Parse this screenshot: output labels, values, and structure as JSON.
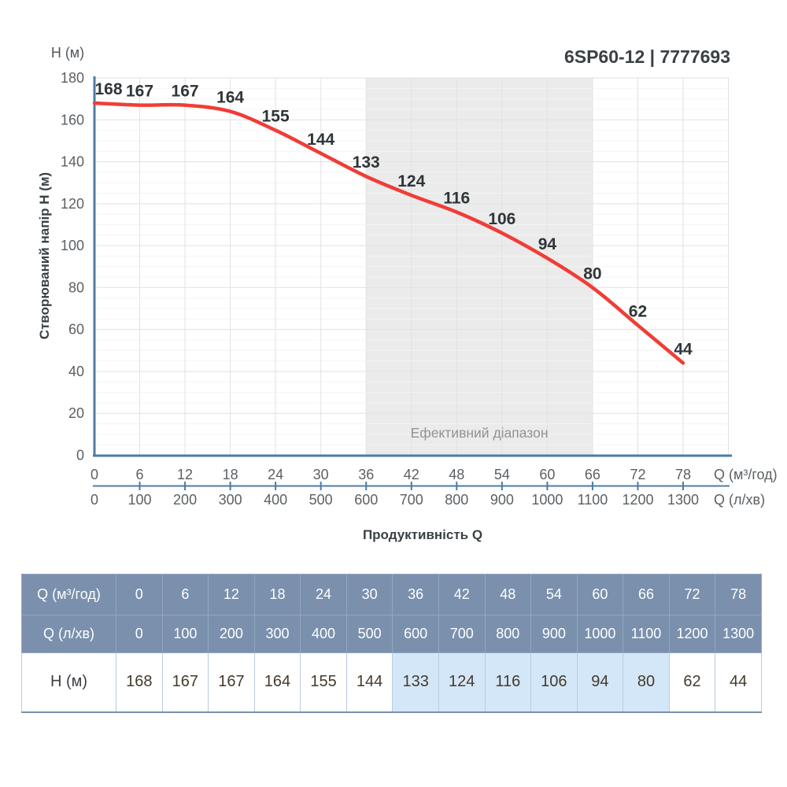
{
  "header": {
    "title": "6SP60-12 | 7777693"
  },
  "chart_data": {
    "type": "line",
    "title": "6SP60-12 | 7777693",
    "xlabel": "Продуктивність Q",
    "ylabel": "Створюваний напір H (м)",
    "y_axis_unit": "H (м)",
    "x_axis_unit_primary": "Q (м³/год)",
    "x_axis_unit_secondary": "Q (л/хв)",
    "x": [
      0,
      6,
      12,
      18,
      24,
      30,
      36,
      42,
      48,
      54,
      60,
      66,
      72,
      78
    ],
    "x_secondary": [
      0,
      100,
      200,
      300,
      400,
      500,
      600,
      700,
      800,
      900,
      1000,
      1100,
      1200,
      1300
    ],
    "y": [
      168,
      167,
      167,
      164,
      155,
      144,
      133,
      124,
      116,
      106,
      94,
      80,
      62,
      44
    ],
    "ylim": [
      0,
      180
    ],
    "xlim": [
      0,
      84
    ],
    "y_major_step": 20,
    "y_minor_step": 5,
    "x_major_step": 6,
    "grid": true,
    "legend_position": "none",
    "effective_range": {
      "from": 36,
      "to": 66,
      "label": "Ефективний діапазон"
    }
  },
  "table": {
    "rows": [
      {
        "kind": "hdr",
        "label": "Q (м³/год)",
        "values": [
          "0",
          "6",
          "12",
          "18",
          "24",
          "30",
          "36",
          "42",
          "48",
          "54",
          "60",
          "66",
          "72",
          "78"
        ]
      },
      {
        "kind": "hdr2",
        "label": "Q (л/хв)",
        "values": [
          "0",
          "100",
          "200",
          "300",
          "400",
          "500",
          "600",
          "700",
          "800",
          "900",
          "1000",
          "1100",
          "1200",
          "1300"
        ]
      },
      {
        "kind": "val",
        "label": "H (м)",
        "values": [
          "168",
          "167",
          "167",
          "164",
          "155",
          "144",
          "133",
          "124",
          "116",
          "106",
          "94",
          "80",
          "62",
          "44"
        ],
        "highlight_columns": [
          6,
          7,
          8,
          9,
          10,
          11
        ]
      }
    ]
  },
  "colors": {
    "curve_red": "#f03d36",
    "axis_blue": "#4d7ca3",
    "table_header_bg": "#7a90ac",
    "highlight_bg": "#d4e7f8",
    "effective_band_bg": "#ebebeb",
    "grid_major": "#e2e2e2",
    "grid_minor": "#f4f4f4",
    "tick_text": "#5b6064",
    "dark_text": "#3a4145",
    "point_label_text": "#2f3538",
    "band_text": "#8f9396"
  }
}
